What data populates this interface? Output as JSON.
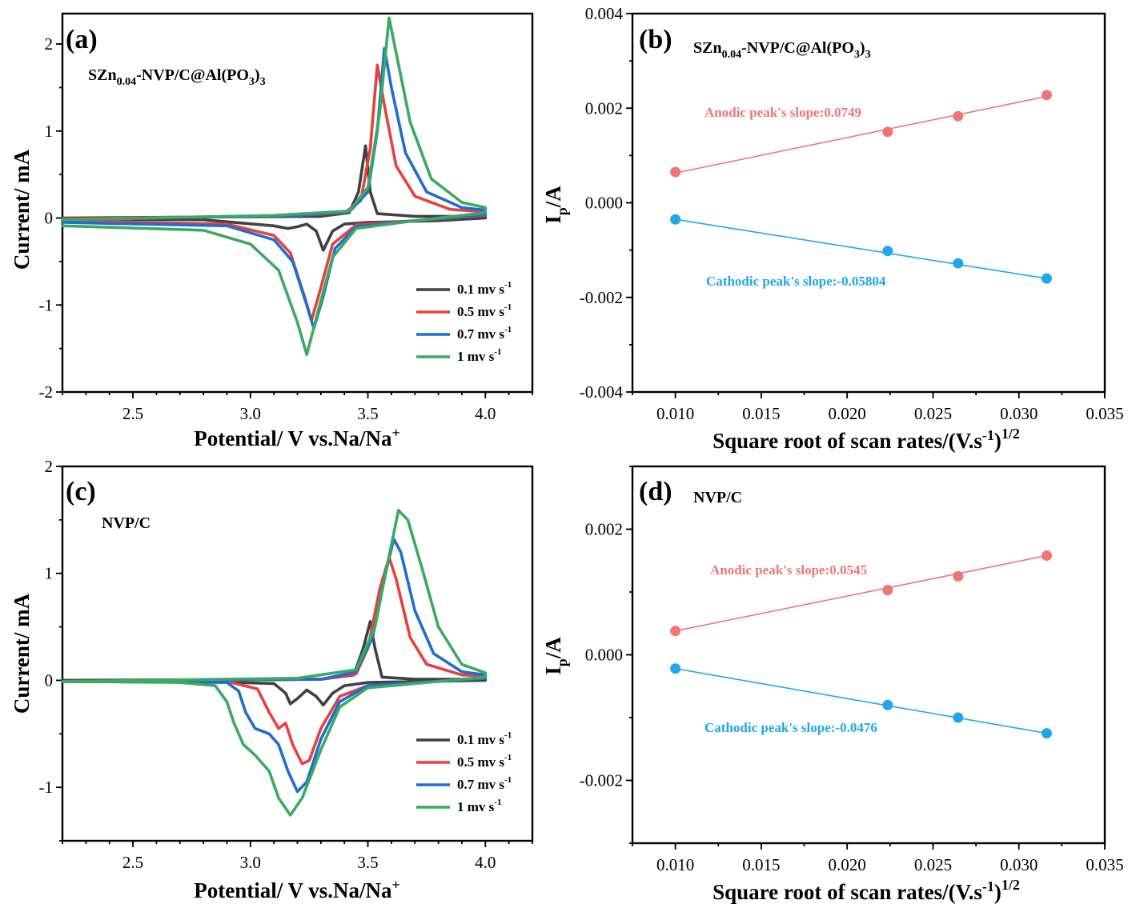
{
  "colors": {
    "black": "#404040",
    "red": "#e8403d",
    "blue": "#1f6dd1",
    "green": "#3aaa63",
    "anodic": "#f07575",
    "cathodic": "#1fa7e6"
  },
  "chart_data": [
    {
      "panel_label": "(a)",
      "type": "line",
      "title_parts": {
        "base": "SZn",
        "sub1": "0.04",
        "mid": "-NVP/C@Al(PO",
        "sub2": "3",
        "end": ")",
        "sub3": "3"
      },
      "xlabel": "Potential/ V vs.Na/Na",
      "xlabel_sup": "+",
      "ylabel": "Current/ mA",
      "xlim": [
        2.2,
        4.2
      ],
      "ylim": [
        -2,
        2.35
      ],
      "xticks": [
        "2.5",
        "3.0",
        "3.5",
        "4.0"
      ],
      "yticks": [
        "-2",
        "-1",
        "0",
        "1",
        "2"
      ],
      "legend": [
        {
          "label": "0.1 mv s",
          "sup": "-1",
          "color_key": "black"
        },
        {
          "label": "0.5 mv s",
          "sup": "-1",
          "color_key": "red"
        },
        {
          "label": "0.7 mv s",
          "sup": "-1",
          "color_key": "blue"
        },
        {
          "label": "1 mv s",
          "sup": "-1",
          "color_key": "green"
        }
      ],
      "series": [
        {
          "name": "0.1 mv s-1",
          "color_key": "black",
          "points": [
            [
              2.2,
              0.0
            ],
            [
              3.3,
              0.02
            ],
            [
              3.42,
              0.06
            ],
            [
              3.46,
              0.3
            ],
            [
              3.49,
              0.83
            ],
            [
              3.51,
              0.3
            ],
            [
              3.54,
              0.05
            ],
            [
              3.7,
              0.02
            ],
            [
              4.0,
              0.02
            ],
            [
              4.0,
              0.0
            ],
            [
              3.8,
              -0.03
            ],
            [
              3.5,
              -0.05
            ],
            [
              3.4,
              -0.07
            ],
            [
              3.35,
              -0.15
            ],
            [
              3.31,
              -0.37
            ],
            [
              3.28,
              -0.15
            ],
            [
              3.24,
              -0.07
            ],
            [
              3.2,
              -0.1
            ],
            [
              3.16,
              -0.12
            ],
            [
              3.1,
              -0.09
            ],
            [
              2.8,
              -0.02
            ],
            [
              2.2,
              -0.01
            ]
          ]
        },
        {
          "name": "0.5 mv s-1",
          "color_key": "red",
          "points": [
            [
              2.2,
              -0.01
            ],
            [
              3.2,
              0.03
            ],
            [
              3.4,
              0.06
            ],
            [
              3.47,
              0.2
            ],
            [
              3.51,
              0.8
            ],
            [
              3.54,
              1.76
            ],
            [
              3.57,
              1.3
            ],
            [
              3.62,
              0.6
            ],
            [
              3.7,
              0.25
            ],
            [
              3.85,
              0.1
            ],
            [
              4.0,
              0.07
            ],
            [
              4.0,
              0.03
            ],
            [
              3.7,
              -0.03
            ],
            [
              3.45,
              -0.08
            ],
            [
              3.35,
              -0.3
            ],
            [
              3.3,
              -0.8
            ],
            [
              3.26,
              -1.18
            ],
            [
              3.23,
              -0.9
            ],
            [
              3.17,
              -0.4
            ],
            [
              3.1,
              -0.2
            ],
            [
              2.9,
              -0.07
            ],
            [
              2.2,
              -0.03
            ]
          ]
        },
        {
          "name": "0.7 mv s-1",
          "color_key": "blue",
          "points": [
            [
              2.2,
              -0.02
            ],
            [
              3.2,
              0.03
            ],
            [
              3.42,
              0.07
            ],
            [
              3.5,
              0.3
            ],
            [
              3.54,
              1.0
            ],
            [
              3.57,
              1.95
            ],
            [
              3.6,
              1.5
            ],
            [
              3.66,
              0.75
            ],
            [
              3.75,
              0.3
            ],
            [
              3.9,
              0.12
            ],
            [
              4.0,
              0.09
            ],
            [
              4.0,
              0.04
            ],
            [
              3.7,
              -0.03
            ],
            [
              3.45,
              -0.1
            ],
            [
              3.36,
              -0.35
            ],
            [
              3.31,
              -0.9
            ],
            [
              3.27,
              -1.27
            ],
            [
              3.24,
              -1.0
            ],
            [
              3.18,
              -0.5
            ],
            [
              3.1,
              -0.25
            ],
            [
              2.9,
              -0.09
            ],
            [
              2.2,
              -0.05
            ]
          ]
        },
        {
          "name": "1 mv s-1",
          "color_key": "green",
          "points": [
            [
              2.2,
              -0.02
            ],
            [
              3.1,
              0.03
            ],
            [
              3.42,
              0.08
            ],
            [
              3.5,
              0.35
            ],
            [
              3.55,
              1.2
            ],
            [
              3.59,
              2.3
            ],
            [
              3.62,
              1.9
            ],
            [
              3.68,
              1.1
            ],
            [
              3.77,
              0.45
            ],
            [
              3.9,
              0.18
            ],
            [
              4.0,
              0.12
            ],
            [
              4.0,
              0.06
            ],
            [
              3.7,
              -0.03
            ],
            [
              3.45,
              -0.12
            ],
            [
              3.35,
              -0.45
            ],
            [
              3.29,
              -1.05
            ],
            [
              3.24,
              -1.57
            ],
            [
              3.2,
              -1.2
            ],
            [
              3.12,
              -0.6
            ],
            [
              3.0,
              -0.3
            ],
            [
              2.8,
              -0.14
            ],
            [
              2.2,
              -0.09
            ]
          ]
        }
      ]
    },
    {
      "panel_label": "(b)",
      "type": "scatter",
      "title_parts": {
        "base": "SZn",
        "sub1": "0.04",
        "mid": "-NVP/C@Al(PO",
        "sub2": "3",
        "end": ")",
        "sub3": "3"
      },
      "xlabel": "Square root of scan rates/(V.s",
      "xlabel_sup1": "-1",
      "xlabel_mid": ")",
      "xlabel_sup2": "1/2",
      "ylabel": "I",
      "ylabel_sub": "p",
      "ylabel_end": "/A",
      "xlim": [
        0.0075,
        0.035
      ],
      "ylim": [
        -0.004,
        0.004
      ],
      "xticks": [
        "0.010",
        "0.015",
        "0.020",
        "0.025",
        "0.030",
        "0.035"
      ],
      "yticks": [
        "0.004",
        "0.002",
        "0.000",
        "-0.002",
        "-0.004"
      ],
      "annotations": {
        "anodic": "Anodic peak's slope:0.0749",
        "cathodic": "Cathodic peak's slope:-0.05804"
      },
      "series": [
        {
          "name": "Anodic",
          "color_key": "anodic",
          "x": [
            0.01,
            0.02236,
            0.02646,
            0.03162
          ],
          "y": [
            0.00065,
            0.0015,
            0.00183,
            0.00228
          ],
          "fit": [
            [
              0.01,
              0.00063
            ],
            [
              0.03162,
              0.00225
            ]
          ]
        },
        {
          "name": "Cathodic",
          "color_key": "cathodic",
          "x": [
            0.01,
            0.02236,
            0.02646,
            0.03162
          ],
          "y": [
            -0.00035,
            -0.00102,
            -0.00128,
            -0.0016
          ],
          "fit": [
            [
              0.01,
              -0.00035
            ],
            [
              0.03162,
              -0.0016
            ]
          ]
        }
      ]
    },
    {
      "panel_label": "(c)",
      "type": "line",
      "title": "NVP/C",
      "xlabel": "Potential/ V vs.Na/Na",
      "xlabel_sup": "+",
      "ylabel": "Current/ mA",
      "xlim": [
        2.2,
        4.2
      ],
      "ylim": [
        -1.5,
        2
      ],
      "xticks": [
        "2.5",
        "3.0",
        "3.5",
        "4.0"
      ],
      "yticks": [
        "-1",
        "0",
        "1",
        "2"
      ],
      "legend": [
        {
          "label": "0.1 mv s",
          "sup": "-1",
          "color_key": "black"
        },
        {
          "label": "0.5 mv s",
          "sup": "-1",
          "color_key": "red"
        },
        {
          "label": "0.7 mv s",
          "sup": "-1",
          "color_key": "blue"
        },
        {
          "label": "1 mv s",
          "sup": "-1",
          "color_key": "green"
        }
      ],
      "series": [
        {
          "name": "0.1 mv s-1",
          "color_key": "black",
          "points": [
            [
              2.2,
              0.0
            ],
            [
              3.3,
              0.01
            ],
            [
              3.44,
              0.05
            ],
            [
              3.48,
              0.3
            ],
            [
              3.51,
              0.55
            ],
            [
              3.53,
              0.3
            ],
            [
              3.56,
              0.03
            ],
            [
              3.7,
              0.01
            ],
            [
              4.0,
              0.01
            ],
            [
              4.0,
              0.0
            ],
            [
              3.5,
              -0.02
            ],
            [
              3.4,
              -0.05
            ],
            [
              3.35,
              -0.12
            ],
            [
              3.31,
              -0.23
            ],
            [
              3.28,
              -0.15
            ],
            [
              3.24,
              -0.09
            ],
            [
              3.2,
              -0.17
            ],
            [
              3.17,
              -0.22
            ],
            [
              3.15,
              -0.12
            ],
            [
              3.1,
              -0.03
            ],
            [
              2.8,
              -0.01
            ],
            [
              2.2,
              -0.01
            ]
          ]
        },
        {
          "name": "0.5 mv s-1",
          "color_key": "red",
          "points": [
            [
              2.2,
              -0.01
            ],
            [
              3.3,
              0.01
            ],
            [
              3.45,
              0.06
            ],
            [
              3.5,
              0.3
            ],
            [
              3.55,
              0.85
            ],
            [
              3.59,
              1.15
            ],
            [
              3.62,
              0.95
            ],
            [
              3.68,
              0.4
            ],
            [
              3.75,
              0.15
            ],
            [
              3.9,
              0.05
            ],
            [
              4.0,
              0.04
            ],
            [
              4.0,
              0.02
            ],
            [
              3.5,
              -0.05
            ],
            [
              3.38,
              -0.15
            ],
            [
              3.3,
              -0.45
            ],
            [
              3.25,
              -0.75
            ],
            [
              3.22,
              -0.78
            ],
            [
              3.18,
              -0.6
            ],
            [
              3.15,
              -0.4
            ],
            [
              3.12,
              -0.45
            ],
            [
              3.08,
              -0.3
            ],
            [
              3.03,
              -0.08
            ],
            [
              2.9,
              -0.01
            ],
            [
              2.2,
              -0.01
            ]
          ]
        },
        {
          "name": "0.7 mv s-1",
          "color_key": "blue",
          "points": [
            [
              2.2,
              -0.01
            ],
            [
              3.3,
              0.01
            ],
            [
              3.45,
              0.08
            ],
            [
              3.52,
              0.4
            ],
            [
              3.57,
              0.95
            ],
            [
              3.61,
              1.32
            ],
            [
              3.64,
              1.2
            ],
            [
              3.7,
              0.65
            ],
            [
              3.78,
              0.25
            ],
            [
              3.9,
              0.08
            ],
            [
              4.0,
              0.05
            ],
            [
              4.0,
              0.02
            ],
            [
              3.5,
              -0.05
            ],
            [
              3.38,
              -0.2
            ],
            [
              3.3,
              -0.55
            ],
            [
              3.24,
              -0.95
            ],
            [
              3.2,
              -1.04
            ],
            [
              3.16,
              -0.85
            ],
            [
              3.12,
              -0.6
            ],
            [
              3.08,
              -0.5
            ],
            [
              3.02,
              -0.45
            ],
            [
              2.98,
              -0.3
            ],
            [
              2.95,
              -0.1
            ],
            [
              2.9,
              -0.02
            ],
            [
              2.2,
              -0.01
            ]
          ]
        },
        {
          "name": "1 mv s-1",
          "color_key": "green",
          "points": [
            [
              2.2,
              -0.01
            ],
            [
              3.2,
              0.02
            ],
            [
              3.45,
              0.1
            ],
            [
              3.53,
              0.5
            ],
            [
              3.58,
              1.05
            ],
            [
              3.63,
              1.59
            ],
            [
              3.67,
              1.5
            ],
            [
              3.73,
              1.05
            ],
            [
              3.8,
              0.5
            ],
            [
              3.9,
              0.15
            ],
            [
              4.0,
              0.07
            ],
            [
              4.0,
              0.03
            ],
            [
              3.5,
              -0.07
            ],
            [
              3.38,
              -0.25
            ],
            [
              3.3,
              -0.65
            ],
            [
              3.22,
              -1.1
            ],
            [
              3.17,
              -1.26
            ],
            [
              3.12,
              -1.1
            ],
            [
              3.08,
              -0.85
            ],
            [
              3.02,
              -0.7
            ],
            [
              2.97,
              -0.6
            ],
            [
              2.93,
              -0.4
            ],
            [
              2.9,
              -0.2
            ],
            [
              2.85,
              -0.05
            ],
            [
              2.7,
              -0.02
            ],
            [
              2.2,
              -0.01
            ]
          ]
        }
      ]
    },
    {
      "panel_label": "(d)",
      "type": "scatter",
      "title": "NVP/C",
      "xlabel": "Square root of scan rates/(V.s",
      "xlabel_sup1": "-1",
      "xlabel_mid": ")",
      "xlabel_sup2": "1/2",
      "ylabel": "I",
      "ylabel_sub": "p",
      "ylabel_end": "/A",
      "xlim": [
        0.0075,
        0.035
      ],
      "ylim": [
        -0.003,
        0.003
      ],
      "xticks": [
        "0.010",
        "0.015",
        "0.020",
        "0.025",
        "0.030",
        "0.035"
      ],
      "yticks": [
        "0.002",
        "0.000",
        "-0.002"
      ],
      "annotations": {
        "anodic": "Anodic peak's slope:0.0545",
        "cathodic": "Cathodic peak's slope:-0.0476"
      },
      "series": [
        {
          "name": "Anodic",
          "color_key": "anodic",
          "x": [
            0.01,
            0.02236,
            0.02646,
            0.03162
          ],
          "y": [
            0.00038,
            0.00103,
            0.00125,
            0.00158
          ],
          "fit": [
            [
              0.01,
              0.00038
            ],
            [
              0.03162,
              0.00158
            ]
          ]
        },
        {
          "name": "Cathodic",
          "color_key": "cathodic",
          "x": [
            0.01,
            0.02236,
            0.02646,
            0.03162
          ],
          "y": [
            -0.00022,
            -0.0008,
            -0.001,
            -0.00125
          ],
          "fit": [
            [
              0.01,
              -0.00022
            ],
            [
              0.03162,
              -0.00125
            ]
          ]
        }
      ]
    }
  ]
}
